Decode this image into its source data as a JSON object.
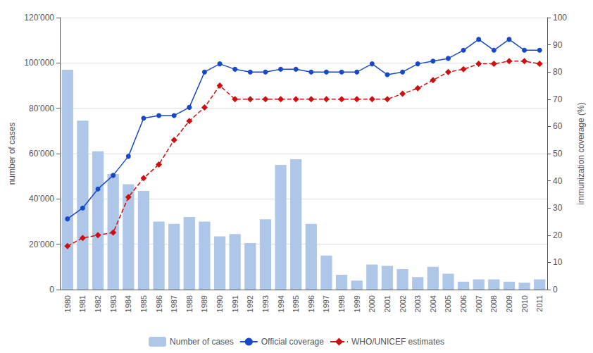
{
  "chart_data": {
    "type": "bar",
    "categories": [
      "1980",
      "1981",
      "1982",
      "1983",
      "1984",
      "1985",
      "1986",
      "1987",
      "1988",
      "1989",
      "1990",
      "1991",
      "1992",
      "1993",
      "1994",
      "1995",
      "1996",
      "1997",
      "1998",
      "1999",
      "2000",
      "2001",
      "2002",
      "2003",
      "2004",
      "2005",
      "2006",
      "2007",
      "2008",
      "2009",
      "2010",
      "2011"
    ],
    "series": [
      {
        "name": "Number of cases",
        "type": "bar",
        "color": "#aec6e8",
        "values": [
          97000,
          74500,
          61000,
          51000,
          46500,
          43500,
          30000,
          29000,
          32000,
          30000,
          23500,
          24500,
          20500,
          31000,
          55000,
          57500,
          29000,
          15000,
          6500,
          4000,
          11000,
          10500,
          9000,
          5500,
          10000,
          7000,
          3500,
          4500,
          4500,
          3500,
          3000,
          4500
        ]
      },
      {
        "name": "Official coverage",
        "type": "line",
        "axis": "y2",
        "color": "#1648c8",
        "marker": "circle",
        "line_style": "solid",
        "values": [
          26,
          30,
          37,
          42,
          49,
          63,
          64,
          64,
          67,
          80,
          83,
          81,
          80,
          80,
          81,
          81,
          80,
          80,
          80,
          80,
          83,
          79,
          80,
          83,
          84,
          85,
          88,
          92,
          88,
          92,
          88,
          88
        ]
      },
      {
        "name": "WHO/UNICEF estimates",
        "type": "line",
        "axis": "y2",
        "color": "#cc1010",
        "marker": "diamond",
        "line_style": "dashed",
        "values": [
          16,
          19,
          20,
          21,
          34,
          41,
          46,
          55,
          62,
          67,
          75,
          70,
          70,
          70,
          70,
          70,
          70,
          70,
          70,
          70,
          70,
          70,
          72,
          74,
          77,
          80,
          81,
          83,
          83,
          84,
          84,
          83
        ]
      }
    ],
    "ylabel": "number of cases",
    "y2label": "immunization coverage (%)",
    "ylim": [
      0,
      120000
    ],
    "yticks": [
      0,
      {
        "value": 20000,
        "label": "20’000"
      },
      {
        "value": 40000,
        "label": "40’000"
      },
      {
        "value": 60000,
        "label": "60’000"
      },
      {
        "value": 80000,
        "label": "80’000"
      },
      {
        "value": 100000,
        "label": "100’000"
      },
      {
        "value": 120000,
        "label": "120’000"
      }
    ],
    "y2lim": [
      0,
      100
    ],
    "y2ticks": [
      0,
      10,
      20,
      30,
      40,
      50,
      60,
      70,
      80,
      90,
      100
    ],
    "grid": true,
    "legend": "bottom"
  }
}
